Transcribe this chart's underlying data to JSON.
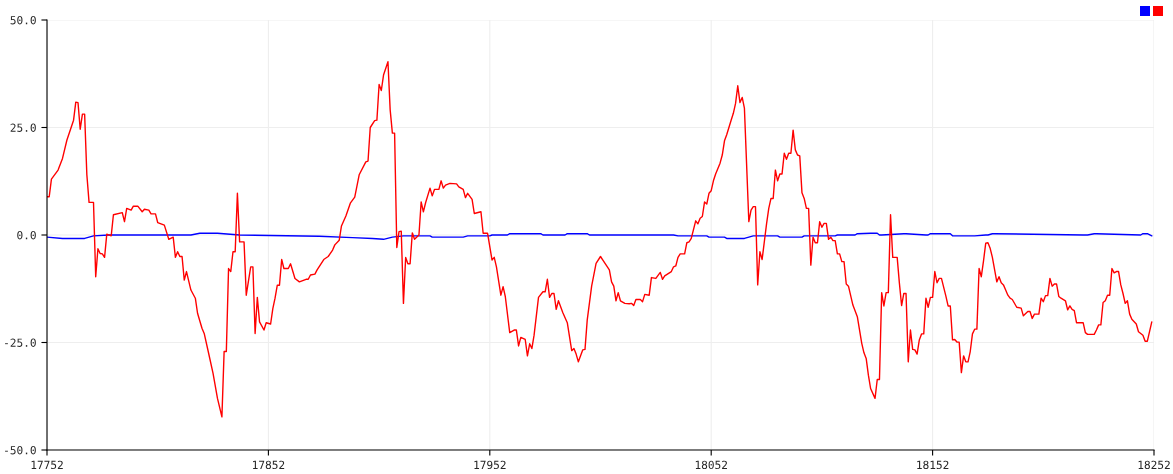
{
  "chart_data": {
    "type": "line",
    "xlim": [
      17752,
      18252
    ],
    "xticks": [
      17752,
      17852,
      17952,
      18052,
      18152,
      18252
    ],
    "ylim": [
      -50,
      50
    ],
    "yticks": [
      {
        "value": -50,
        "label": "-50.0"
      },
      {
        "value": -25,
        "label": "-25.0"
      },
      {
        "value": 0,
        "label": "0.0"
      },
      {
        "value": 25,
        "label": "25.0"
      },
      {
        "value": 50,
        "label": "50.0"
      }
    ],
    "grid": true,
    "line_style": "solid",
    "series": [
      {
        "color": "#0000ff",
        "x": [
          17752,
          17759,
          17769,
          17773,
          17780,
          17817,
          17821,
          17829,
          17839,
          17875,
          17890,
          17899,
          17904,
          17908,
          17913,
          17925,
          17926,
          17940,
          17942,
          17952,
          17953,
          17960,
          17961,
          17975,
          17976,
          17986,
          17987,
          17996,
          17997,
          18035,
          18037,
          18050,
          18051,
          18058,
          18059,
          18067,
          18071,
          18082,
          18083,
          18093,
          18094,
          18108,
          18109,
          18117,
          18118,
          18124,
          18127,
          18128,
          18129,
          18139,
          18140,
          18149,
          18150,
          18151,
          18160,
          18161,
          18171,
          18176,
          18177,
          18179,
          18180,
          18220,
          18222,
          18225,
          18226,
          18246,
          18247,
          18249,
          18251
        ],
        "values": [
          -0.5,
          -0.8,
          -0.8,
          -0.2,
          0,
          0,
          0.4,
          0.4,
          0,
          -0.3,
          -0.6,
          -0.8,
          -1.0,
          -0.5,
          -0.2,
          -0.2,
          -0.5,
          -0.5,
          -0.2,
          -0.2,
          0,
          0,
          0.3,
          0.3,
          0,
          0,
          0.3,
          0.3,
          0,
          0,
          -0.2,
          -0.2,
          -0.5,
          -0.5,
          -0.8,
          -0.8,
          -0.2,
          -0.2,
          -0.5,
          -0.5,
          -0.2,
          -0.2,
          0,
          0,
          0.3,
          0.4,
          0.4,
          0,
          0,
          0.3,
          0.3,
          0,
          0,
          0.3,
          0.3,
          -0.2,
          -0.2,
          0,
          0,
          0.3,
          0.3,
          0,
          0,
          0.3,
          0.3,
          0,
          0.3,
          0.3,
          -0.2
        ]
      },
      {
        "color": "#ff0000",
        "x": [
          17752,
          17753,
          17754,
          17757,
          17759,
          17761,
          17764,
          17765,
          17766,
          17767,
          17768,
          17769,
          17770,
          17771,
          17773,
          17774,
          17775,
          17776,
          17777,
          17778,
          17779,
          17781,
          17782,
          17786,
          17787,
          17788,
          17790,
          17791,
          17793,
          17795,
          17796,
          17798,
          17799,
          17801,
          17802,
          17805,
          17807,
          17809,
          17810,
          17811,
          17812,
          17813,
          17814,
          17815,
          17817,
          17819,
          17820,
          17822,
          17823,
          17825,
          17827,
          17829,
          17831,
          17832,
          17833,
          17834,
          17835,
          17836,
          17837,
          17838,
          17839,
          17841,
          17842,
          17844,
          17845,
          17846,
          17847,
          17848,
          17850,
          17851,
          17853,
          17854,
          17855,
          17856,
          17857,
          17858,
          17859,
          17861,
          17862,
          17864,
          17866,
          17869,
          17870,
          17871,
          17873,
          17874,
          17877,
          17879,
          17881,
          17882,
          17884,
          17885,
          17887,
          17889,
          17891,
          17893,
          17896,
          17897,
          17898,
          17900,
          17901,
          17902,
          17903,
          17904,
          17906,
          17907,
          17908,
          17909,
          17910,
          17911,
          17912,
          17913,
          17914,
          17915,
          17916,
          17917,
          17918,
          17920,
          17921,
          17922,
          17923,
          17925,
          17926,
          17927,
          17929,
          17930,
          17931,
          17932,
          17934,
          17937,
          17938,
          17940,
          17941,
          17942,
          17944,
          17945,
          17948,
          17949,
          17951,
          17953,
          17954,
          17955,
          17957,
          17958,
          17959,
          17961,
          17963,
          17964,
          17965,
          17966,
          17968,
          17969,
          17970,
          17971,
          17972,
          17974,
          17976,
          17977,
          17978,
          17979,
          17980,
          17981,
          17982,
          17983,
          17985,
          17987,
          17989,
          17990,
          17991,
          17992,
          17994,
          17995,
          17996,
          17998,
          18000,
          18002,
          18003,
          18006,
          18007,
          18008,
          18009,
          18010,
          18011,
          18013,
          18015,
          18016,
          18017,
          18018,
          18020,
          18021,
          18022,
          18024,
          18025,
          18027,
          18029,
          18030,
          18031,
          18034,
          18035,
          18036,
          18037,
          18038,
          18040,
          18041,
          18042,
          18043,
          18045,
          18046,
          18047,
          18048,
          18049,
          18050,
          18051,
          18052,
          18053,
          18054,
          18056,
          18057,
          18058,
          18059,
          18061,
          18062,
          18063,
          18064,
          18065,
          18066,
          18067,
          18069,
          18070,
          18071,
          18072,
          18073,
          18074,
          18075,
          18077,
          18078,
          18079,
          18080,
          18081,
          18082,
          18083,
          18084,
          18085,
          18086,
          18087,
          18088,
          18089,
          18090,
          18091,
          18092,
          18093,
          18094,
          18095,
          18096,
          18097,
          18098,
          18099,
          18100,
          18101,
          18102,
          18103,
          18104,
          18105,
          18106,
          18107,
          18108,
          18109,
          18110,
          18111,
          18112,
          18113,
          18114,
          18116,
          18118,
          18120,
          18121,
          18122,
          18123,
          18124,
          18126,
          18127,
          18128,
          18129,
          18130,
          18131,
          18132,
          18133,
          18134,
          18136,
          18137,
          18138,
          18139,
          18140,
          18141,
          18142,
          18143,
          18144,
          18145,
          18146,
          18147,
          18148,
          18149,
          18150,
          18151,
          18152,
          18153,
          18154,
          18155,
          18156,
          18158,
          18159,
          18160,
          18161,
          18162,
          18163,
          18164,
          18165,
          18166,
          18167,
          18168,
          18169,
          18170,
          18171,
          18172,
          18173,
          18174,
          18175,
          18176,
          18177,
          18178,
          18179,
          18181,
          18182,
          18183,
          18184,
          18185,
          18186,
          18187,
          18188,
          18190,
          18192,
          18193,
          18195,
          18196,
          18197,
          18198,
          18200,
          18201,
          18202,
          18203,
          18204,
          18205,
          18206,
          18207,
          18208,
          18209,
          18210,
          18212,
          18213,
          18214,
          18215,
          18216,
          18217,
          18219,
          18220,
          18221,
          18222,
          18225,
          18226,
          18227,
          18228,
          18229,
          18230,
          18231,
          18232,
          18233,
          18234,
          18235,
          18236,
          18237,
          18238,
          18239,
          18240,
          18241,
          18242,
          18244,
          18245,
          18247,
          18248,
          18249,
          18251
        ],
        "values": [
          8.9,
          8.9,
          13.0,
          15.1,
          17.8,
          22.1,
          26.7,
          30.9,
          30.8,
          24.6,
          28.1,
          28.1,
          14.0,
          7.6,
          7.6,
          -9.7,
          -3.2,
          -4.3,
          -4.4,
          -5.2,
          0.2,
          -0.2,
          4.7,
          5.2,
          3.1,
          6.2,
          5.8,
          6.7,
          6.7,
          5.4,
          6.0,
          5.8,
          4.9,
          4.9,
          2.9,
          2.3,
          -1.0,
          -0.5,
          -5.2,
          -3.9,
          -5.0,
          -5.0,
          -10.5,
          -8.5,
          -12.8,
          -14.7,
          -18.2,
          -21.7,
          -22.9,
          -27.5,
          -32.2,
          -38.0,
          -42.3,
          -27.1,
          -27.1,
          -7.8,
          -8.5,
          -3.9,
          -3.9,
          9.7,
          -1.6,
          -1.6,
          -14.0,
          -7.4,
          -7.4,
          -22.9,
          -14.5,
          -20.2,
          -22.1,
          -20.4,
          -20.7,
          -17.1,
          -14.7,
          -11.7,
          -11.7,
          -5.7,
          -7.8,
          -7.8,
          -6.7,
          -10.1,
          -10.9,
          -10.3,
          -10.3,
          -9.3,
          -9.1,
          -8.1,
          -5.7,
          -5.0,
          -3.5,
          -2.3,
          -1.2,
          2.1,
          4.4,
          7.4,
          8.8,
          14.0,
          17.0,
          17.2,
          25.0,
          26.6,
          26.7,
          35.0,
          33.6,
          37.2,
          40.3,
          29.1,
          23.7,
          23.7,
          -2.9,
          0.8,
          0.9,
          -15.9,
          -5.2,
          -6.7,
          -6.7,
          0.5,
          -1.0,
          0,
          7.7,
          5.4,
          7.5,
          10.9,
          9.1,
          10.6,
          10.6,
          12.6,
          10.9,
          11.6,
          12.0,
          11.9,
          11.2,
          10.6,
          8.7,
          9.7,
          8.3,
          5.0,
          5.4,
          0.4,
          0.4,
          -5.8,
          -5.2,
          -7.4,
          -14.0,
          -12.0,
          -14.3,
          -22.7,
          -22.1,
          -22.1,
          -25.8,
          -23.8,
          -24.3,
          -28.1,
          -25.3,
          -26.4,
          -23.3,
          -14.5,
          -13.2,
          -13.2,
          -10.3,
          -14.5,
          -13.6,
          -13.6,
          -17.3,
          -15.3,
          -18.1,
          -20.4,
          -26.9,
          -26.4,
          -27.7,
          -29.5,
          -26.7,
          -26.6,
          -19.8,
          -11.9,
          -6.6,
          -5.0,
          -5.8,
          -8.1,
          -10.9,
          -11.9,
          -15.3,
          -13.4,
          -15.3,
          -15.9,
          -16.0,
          -15.9,
          -16.4,
          -15.0,
          -15.0,
          -15.5,
          -13.8,
          -14.0,
          -9.9,
          -10.1,
          -8.7,
          -10.3,
          -9.5,
          -8.5,
          -7.4,
          -7.2,
          -5.2,
          -4.4,
          -4.4,
          -1.8,
          -1.6,
          -0.8,
          3.3,
          2.6,
          3.9,
          4.3,
          7.7,
          7.2,
          9.7,
          10.3,
          12.6,
          14.2,
          16.7,
          18.6,
          21.9,
          23.3,
          26.7,
          28.3,
          30.6,
          34.7,
          30.8,
          32.0,
          29.5,
          3.1,
          5.8,
          6.6,
          6.6,
          -11.6,
          -3.9,
          -5.7,
          2.6,
          6.2,
          8.5,
          8.5,
          15.1,
          12.6,
          14.2,
          14.2,
          19.0,
          17.6,
          19.0,
          19.0,
          24.4,
          19.8,
          18.6,
          18.4,
          9.8,
          8.5,
          6.2,
          6.2,
          -7.0,
          -0.5,
          -1.8,
          -1.8,
          3.1,
          1.8,
          2.7,
          2.7,
          -1.0,
          -0.5,
          -1.3,
          -1.3,
          -4.4,
          -4.4,
          -6.2,
          -6.2,
          -11.4,
          -11.9,
          -16.3,
          -19.0,
          -25.2,
          -27.4,
          -28.7,
          -32.6,
          -35.7,
          -38.0,
          -33.6,
          -33.6,
          -13.4,
          -16.5,
          -13.4,
          -13.4,
          4.7,
          -5.2,
          -5.2,
          -11.2,
          -16.4,
          -13.6,
          -13.6,
          -29.5,
          -22.1,
          -26.6,
          -26.7,
          -27.7,
          -24.4,
          -23.0,
          -23.0,
          -14.7,
          -16.8,
          -14.5,
          -14.5,
          -8.5,
          -11.1,
          -10.1,
          -10.1,
          -14.2,
          -16.5,
          -16.5,
          -24.4,
          -24.3,
          -24.9,
          -24.9,
          -32.0,
          -28.1,
          -29.5,
          -29.5,
          -27.1,
          -23.0,
          -21.9,
          -21.9,
          -7.8,
          -9.7,
          -6.0,
          -1.9,
          -1.8,
          -3.1,
          -5.2,
          -10.9,
          -9.7,
          -11.1,
          -11.6,
          -12.8,
          -14.0,
          -14.7,
          -15.0,
          -16.8,
          -17.0,
          -18.8,
          -17.8,
          -17.8,
          -19.4,
          -18.4,
          -18.4,
          -14.7,
          -15.5,
          -14.1,
          -14.1,
          -10.1,
          -11.9,
          -11.4,
          -11.4,
          -14.3,
          -14.7,
          -15.3,
          -17.4,
          -16.5,
          -17.3,
          -17.6,
          -20.4,
          -20.4,
          -20.4,
          -22.7,
          -23.1,
          -23.1,
          -22.1,
          -20.9,
          -20.9,
          -15.7,
          -15.3,
          -14.0,
          -14.0,
          -7.8,
          -8.8,
          -8.5,
          -8.5,
          -11.6,
          -13.6,
          -15.9,
          -15.3,
          -18.4,
          -19.6,
          -20.7,
          -22.5,
          -23.3,
          -24.7,
          -24.7,
          -20.2
        ]
      }
    ]
  }
}
